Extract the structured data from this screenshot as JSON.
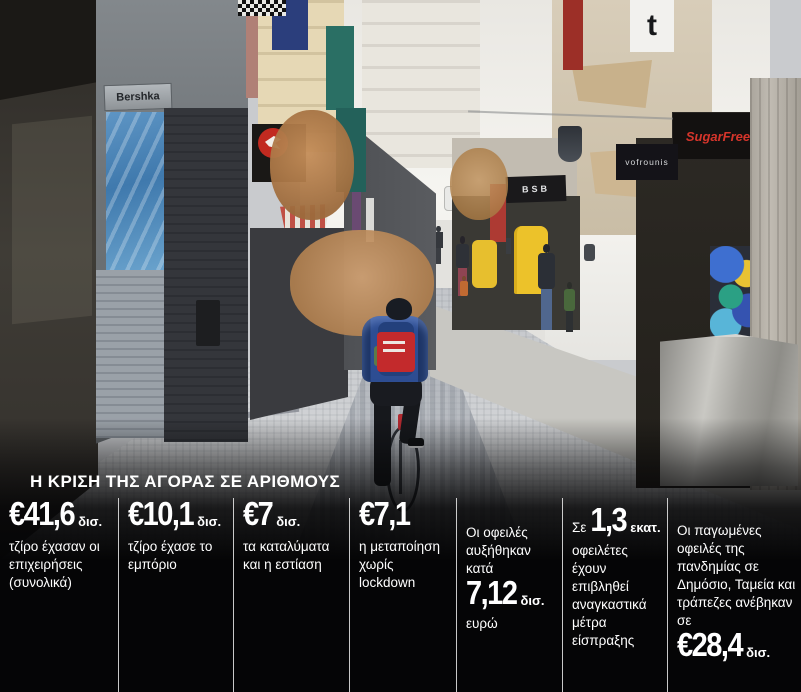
{
  "infographic": {
    "title": "Η ΚΡΙΣΗ ΤΗΣ ΑΓΟΡΑΣ ΣΕ ΑΡΙΘΜΟΥΣ",
    "columns": [
      {
        "value": "€41,6",
        "unit": "δισ.",
        "text_below": "τζίρο έχασαν οι επιχειρήσεις (συνολικά)"
      },
      {
        "value": "€10,1",
        "unit": "δισ.",
        "text_below": "τζίρο έχασε το εμπόριο"
      },
      {
        "value": "€7",
        "unit": "δισ.",
        "text_below": "τα καταλύματα και η εστίαση"
      },
      {
        "value": "€7,1",
        "unit": "",
        "text_below": "η μεταποίηση χωρίς lockdown"
      },
      {
        "text_above": "Οι οφειλές αυξήθηκαν κατά",
        "value": "7,12",
        "unit": "δισ.",
        "text_below": "ευρώ"
      },
      {
        "inline_before": "Σε",
        "value": "1,3",
        "unit": "εκατ.",
        "text_below": "οφειλέτες έχουν επιβληθεί αναγκαστικά μέτρα είσπραξης"
      },
      {
        "text_above": "Οι παγωμένες οφειλές της πανδημίας σε Δημόσιο, Ταμεία και τράπεζες ανέβηκαν σε",
        "value": "€28,4",
        "unit": "δισ."
      }
    ],
    "colors": {
      "background": "#050506",
      "text": "#ffffff",
      "divider": "#ebebeb"
    }
  },
  "photo": {
    "signs": {
      "bershka": "Bershka",
      "bsb": "BSB",
      "vofrounis": "vofrounis",
      "sugarfree": "SugarFree",
      "t_logo": "t"
    },
    "colors": {
      "sugarfree_red": "#d5352b",
      "graffiti_blue": "#4e86ba",
      "courier_jacket_blue": "#2d4d92",
      "courier_bag_red": "#c32a2c",
      "kiosk_yellow": "#ecc22a"
    }
  },
  "chart_data": {
    "type": "table",
    "title": "Η ΚΡΙΣΗ ΤΗΣ ΑΓΟΡΑΣ ΣΕ ΑΡΙΘΜΟΥΣ",
    "rows": [
      {
        "value": "€41,6 δισ.",
        "label": "τζίρο έχασαν οι επιχειρήσεις (συνολικά)"
      },
      {
        "value": "€10,1 δισ.",
        "label": "τζίρο έχασε το εμπόριο"
      },
      {
        "value": "€7 δισ.",
        "label": "τα καταλύματα και η εστίαση"
      },
      {
        "value": "€7,1",
        "label": "η μεταποίηση χωρίς lockdown"
      },
      {
        "value": "7,12 δισ. ευρώ",
        "label": "Οι οφειλές αυξήθηκαν κατά"
      },
      {
        "value": "1,3 εκατ.",
        "label": "Σε οφειλέτες έχουν επιβληθεί αναγκαστικά μέτρα είσπραξης"
      },
      {
        "value": "€28,4 δισ.",
        "label": "Οι παγωμένες οφειλές της πανδημίας σε Δημόσιο, Ταμεία και τράπεζες ανέβηκαν σε"
      }
    ]
  }
}
